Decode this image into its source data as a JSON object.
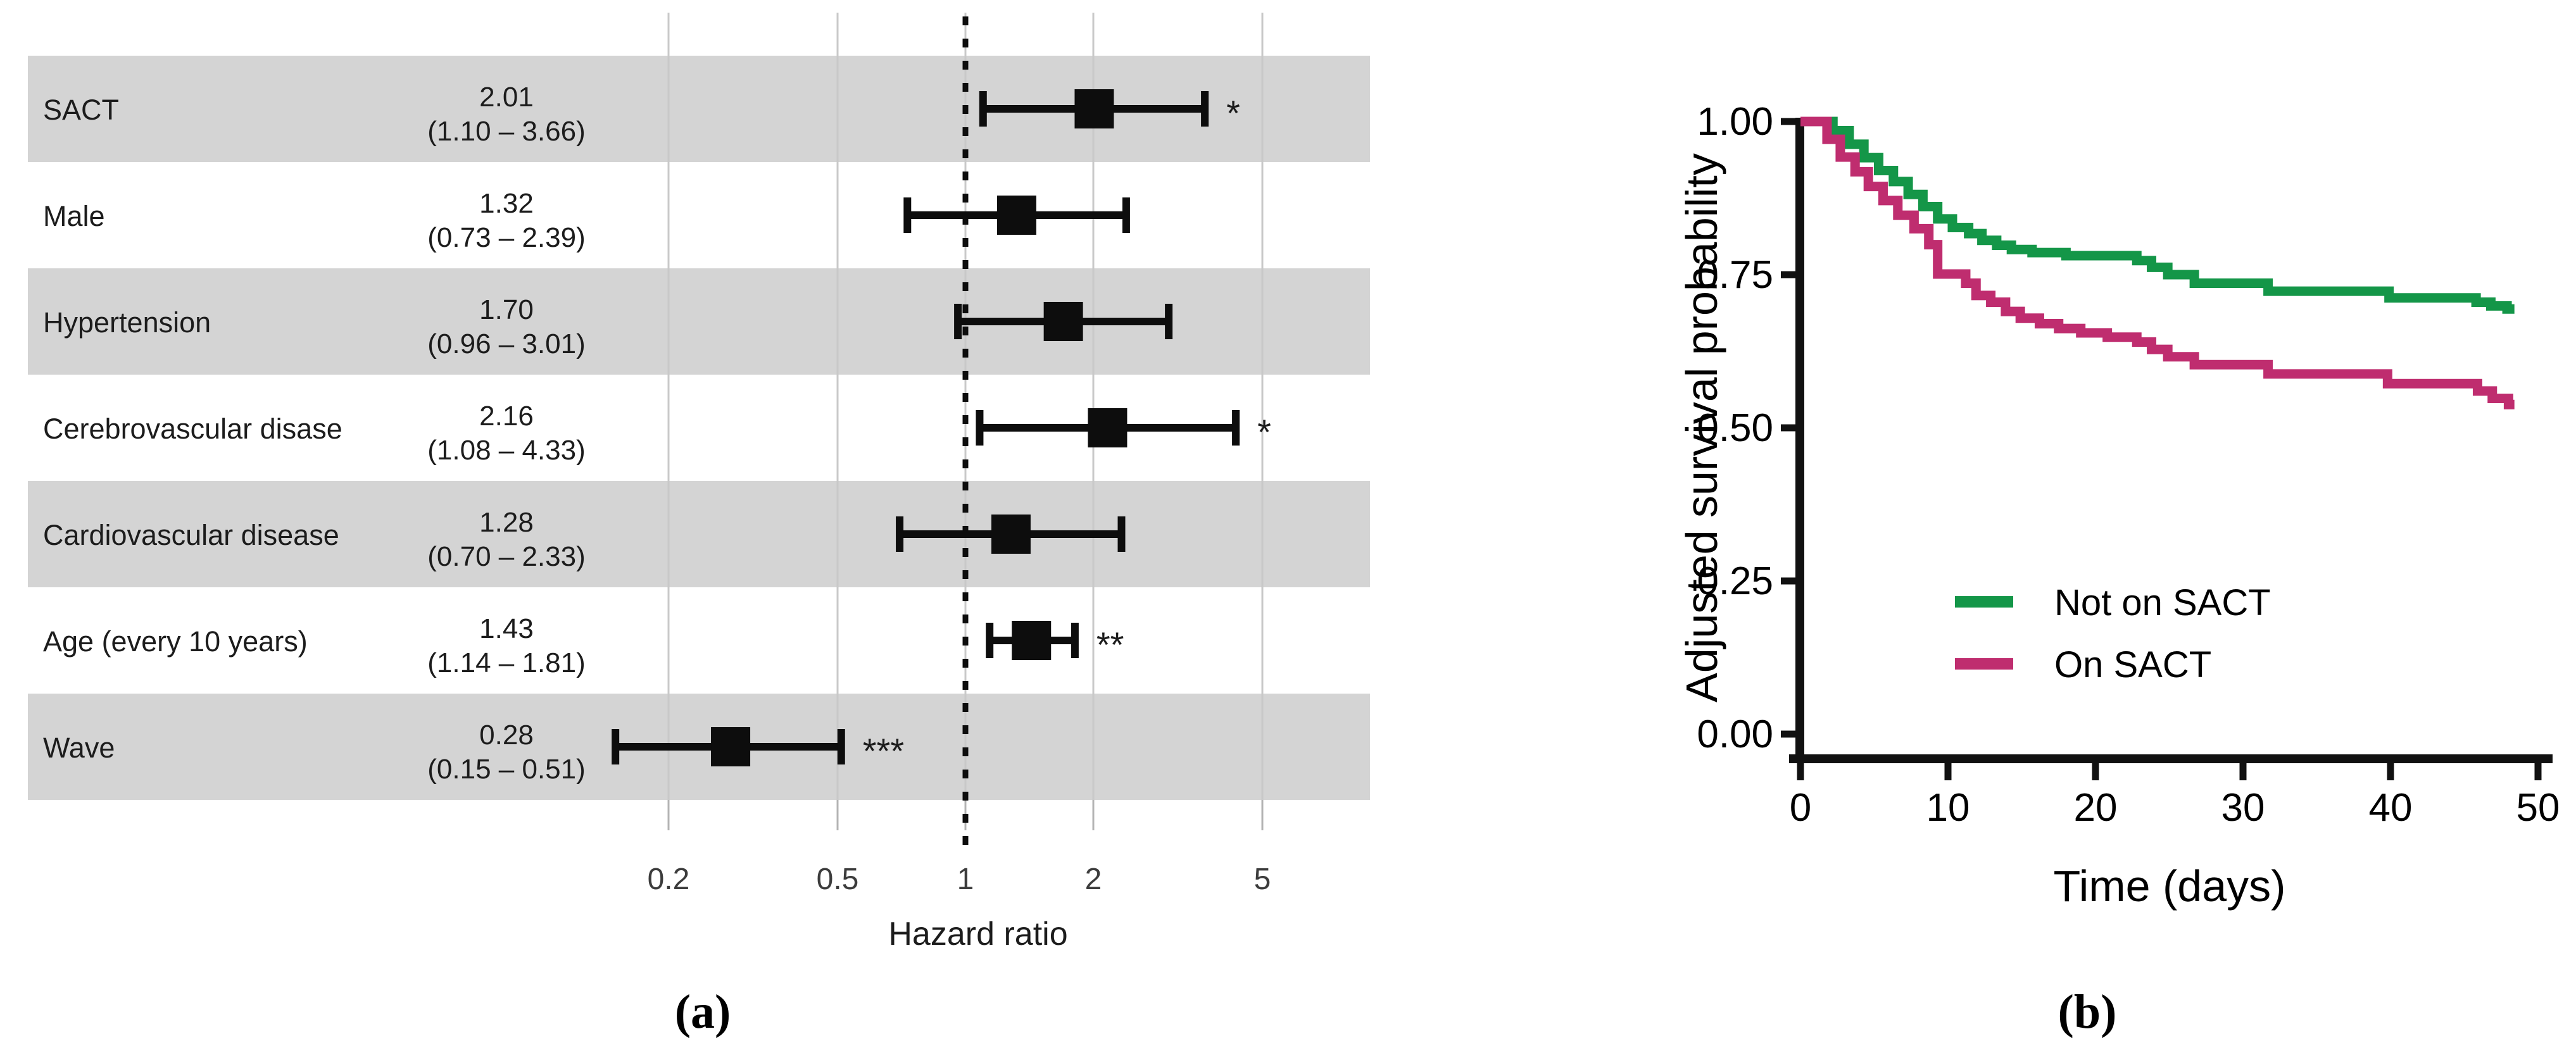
{
  "figure": {
    "panel_a_label": "(a)",
    "panel_b_label": "(b)"
  },
  "colors": {
    "band_gray": "#d4d4d4",
    "gridline": "#c9c9c9",
    "axis_black": "#111111",
    "text_dark": "#1c1c1c",
    "tick_text": "#3c3c3c",
    "green": "#149648",
    "magenta": "#bf2d6f"
  },
  "chart_data": [
    {
      "type": "forest",
      "panel": "a",
      "xlabel": "Hazard ratio",
      "x_scale": "log",
      "x_ticks": [
        "0.2",
        "0.5",
        "1",
        "2",
        "5"
      ],
      "x_tick_values": [
        0.2,
        0.5,
        1,
        2,
        5
      ],
      "reference_line": 1,
      "xlim": [
        0.13,
        9
      ],
      "rows": [
        {
          "label": "SACT",
          "estimate": 2.01,
          "ci_low": 1.1,
          "ci_high": 3.66,
          "estimate_text": "2.01",
          "ci_text": "(1.10 – 3.66)",
          "significance": "*",
          "shaded": true
        },
        {
          "label": "Male",
          "estimate": 1.32,
          "ci_low": 0.73,
          "ci_high": 2.39,
          "estimate_text": "1.32",
          "ci_text": "(0.73 – 2.39)",
          "significance": "",
          "shaded": false
        },
        {
          "label": "Hypertension",
          "estimate": 1.7,
          "ci_low": 0.96,
          "ci_high": 3.01,
          "estimate_text": "1.70",
          "ci_text": "(0.96 – 3.01)",
          "significance": "",
          "shaded": true
        },
        {
          "label": "Cerebrovascular disase",
          "estimate": 2.16,
          "ci_low": 1.08,
          "ci_high": 4.33,
          "estimate_text": "2.16",
          "ci_text": "(1.08 – 4.33)",
          "significance": "*",
          "shaded": false
        },
        {
          "label": "Cardiovascular disease",
          "estimate": 1.28,
          "ci_low": 0.7,
          "ci_high": 2.33,
          "estimate_text": "1.28",
          "ci_text": "(0.70 – 2.33)",
          "significance": "",
          "shaded": true
        },
        {
          "label": "Age (every 10 years)",
          "estimate": 1.43,
          "ci_low": 1.14,
          "ci_high": 1.81,
          "estimate_text": "1.43",
          "ci_text": "(1.14 – 1.81)",
          "significance": "**",
          "shaded": false
        },
        {
          "label": "Wave",
          "estimate": 0.28,
          "ci_low": 0.15,
          "ci_high": 0.51,
          "estimate_text": "0.28",
          "ci_text": "(0.15 – 0.51)",
          "significance": "***",
          "shaded": true
        }
      ]
    },
    {
      "type": "line",
      "subtype": "kaplan-meier-step",
      "panel": "b",
      "xlabel": "Time (days)",
      "ylabel": "Adjusted survival probability",
      "x_ticks": [
        0,
        10,
        20,
        30,
        40,
        50
      ],
      "y_tick_labels": [
        "1.00",
        "0.75",
        "0.50",
        "0.25",
        "0.00"
      ],
      "y_tick_values": [
        1.0,
        0.75,
        0.5,
        0.25,
        0.0
      ],
      "xlim": [
        0,
        50
      ],
      "ylim": [
        0,
        1
      ],
      "grid": false,
      "legend_position": "inside-lower-middle",
      "legend": [
        {
          "name": "Not on SACT",
          "color": "#149648"
        },
        {
          "name": "On SACT",
          "color": "#bf2d6f"
        }
      ],
      "series": [
        {
          "name": "Not on SACT",
          "color": "#149648",
          "points": [
            [
              0,
              1.0
            ],
            [
              2.2,
              0.985
            ],
            [
              3.3,
              0.963
            ],
            [
              4.3,
              0.941
            ],
            [
              5.3,
              0.92
            ],
            [
              6.3,
              0.902
            ],
            [
              7.3,
              0.881
            ],
            [
              8.3,
              0.861
            ],
            [
              9.3,
              0.841
            ],
            [
              10.3,
              0.827
            ],
            [
              11.4,
              0.817
            ],
            [
              12.3,
              0.806
            ],
            [
              13.3,
              0.798
            ],
            [
              14.3,
              0.791
            ],
            [
              15.7,
              0.786
            ],
            [
              18.0,
              0.781
            ],
            [
              22.8,
              0.773
            ],
            [
              23.8,
              0.762
            ],
            [
              24.9,
              0.75
            ],
            [
              26.7,
              0.736
            ],
            [
              31.7,
              0.723
            ],
            [
              39.9,
              0.712
            ],
            [
              45.8,
              0.705
            ],
            [
              46.8,
              0.699
            ],
            [
              47.9,
              0.694
            ],
            [
              48.4,
              0.694
            ]
          ]
        },
        {
          "name": "On SACT",
          "color": "#bf2d6f",
          "points": [
            [
              0,
              1.0
            ],
            [
              1.8,
              0.971
            ],
            [
              2.7,
              0.942
            ],
            [
              3.7,
              0.918
            ],
            [
              4.6,
              0.894
            ],
            [
              5.6,
              0.871
            ],
            [
              6.6,
              0.847
            ],
            [
              7.7,
              0.825
            ],
            [
              8.7,
              0.799
            ],
            [
              9.3,
              0.751
            ],
            [
              11.2,
              0.736
            ],
            [
              11.9,
              0.716
            ],
            [
              12.9,
              0.705
            ],
            [
              13.9,
              0.69
            ],
            [
              14.9,
              0.679
            ],
            [
              16.2,
              0.67
            ],
            [
              17.5,
              0.662
            ],
            [
              19.0,
              0.655
            ],
            [
              20.8,
              0.648
            ],
            [
              22.8,
              0.64
            ],
            [
              23.8,
              0.628
            ],
            [
              24.9,
              0.616
            ],
            [
              26.7,
              0.603
            ],
            [
              31.7,
              0.588
            ],
            [
              39.8,
              0.572
            ],
            [
              45.9,
              0.56
            ],
            [
              46.9,
              0.548
            ],
            [
              48.0,
              0.538
            ],
            [
              48.4,
              0.538
            ]
          ]
        }
      ]
    }
  ]
}
